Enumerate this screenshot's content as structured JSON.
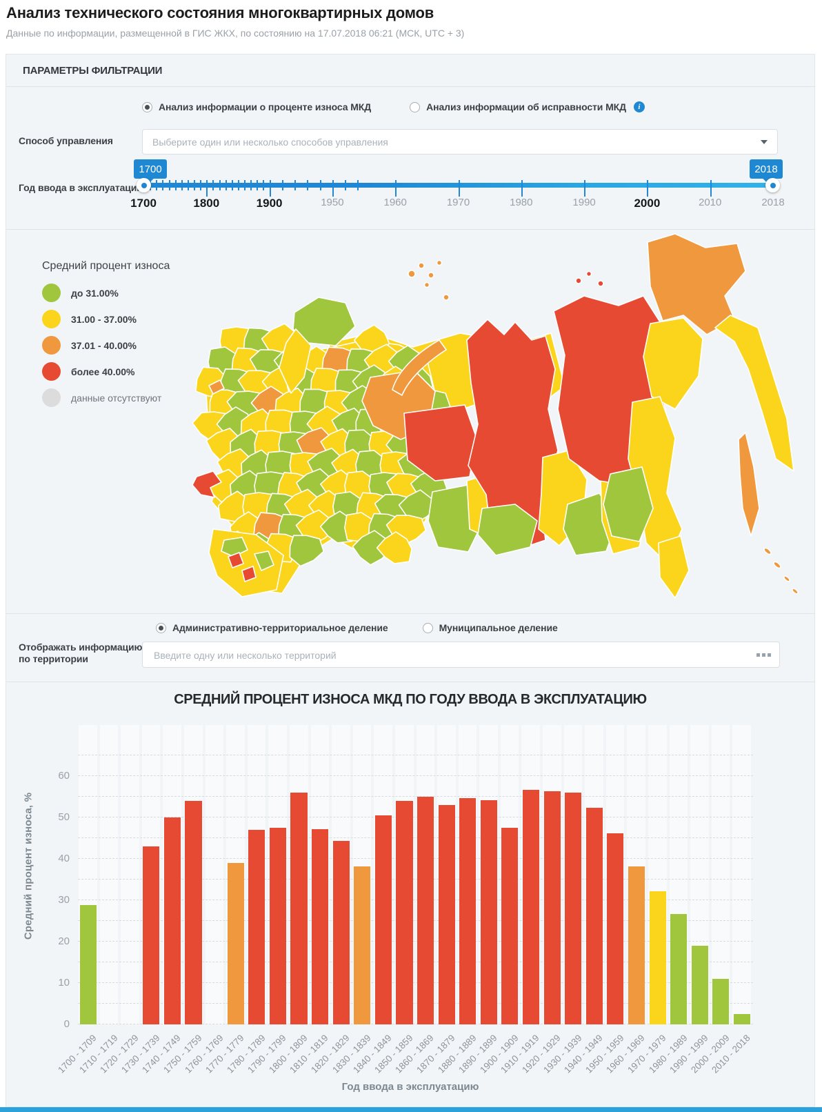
{
  "page": {
    "title": "Анализ технического состояния многоквартирных домов",
    "subtitle": "Данные по информации, размещенной в ГИС ЖКХ, по состоянию на 17.07.2018 06:21 (МСК, UTC + 3)"
  },
  "filter": {
    "header": "ПАРАМЕТРЫ ФИЛЬТРАЦИИ",
    "analysis_radios": [
      {
        "label": "Анализ информации о проценте износа МКД",
        "selected": true
      },
      {
        "label": "Анализ информации об исправности МКД",
        "selected": false,
        "info": true
      }
    ],
    "management": {
      "label": "Способ управления",
      "placeholder": "Выберите один или несколько способов управления"
    },
    "year": {
      "label": "Год ввода в эксплуатацию"
    },
    "slider": {
      "min_tooltip": "1700",
      "max_tooltip": "2018",
      "axis_labels": [
        {
          "t": "1700",
          "pos": 0,
          "bold": true
        },
        {
          "t": "1800",
          "pos": 0.1,
          "bold": true
        },
        {
          "t": "1900",
          "pos": 0.2,
          "bold": true
        },
        {
          "t": "1950",
          "pos": 0.3
        },
        {
          "t": "1960",
          "pos": 0.4
        },
        {
          "t": "1970",
          "pos": 0.5
        },
        {
          "t": "1980",
          "pos": 0.6
        },
        {
          "t": "1990",
          "pos": 0.7
        },
        {
          "t": "2000",
          "pos": 0.8,
          "bold": true
        },
        {
          "t": "2010",
          "pos": 0.9
        },
        {
          "t": "2018",
          "pos": 1
        }
      ]
    }
  },
  "map": {
    "legend": {
      "title": "Средний процент износа",
      "items": [
        {
          "label": "до 31.00%",
          "color": "#9fc63d"
        },
        {
          "label": "31.00 - 37.00%",
          "color": "#fbd51b"
        },
        {
          "label": "37.01 - 40.00%",
          "color": "#f0983d"
        },
        {
          "label": "более 40.00%",
          "color": "#e74a33"
        },
        {
          "label": "данные отсутствуют",
          "color": "#dcdcdc",
          "muted": true
        }
      ]
    },
    "palette": {
      "green": "#9fc63d",
      "yellow": "#fbd51b",
      "orange": "#f0983d",
      "red": "#e74a33",
      "gray": "#dcdcdc"
    },
    "west_cells": [
      "yellow",
      "green",
      "yellow",
      "yellow",
      "green",
      "yellow",
      "green",
      "green",
      "yellow",
      "orange",
      "green",
      "yellow",
      "green",
      "yellow",
      "green",
      "yellow",
      "yellow",
      "green",
      "yellow",
      "green",
      "green",
      "yellow",
      "green",
      "yellow",
      "green",
      "orange",
      "yellow",
      "green",
      "yellow",
      "green",
      "yellow",
      "green",
      "green",
      "yellow",
      "green",
      "yellow",
      "yellow",
      "green",
      "yellow",
      "green",
      "green",
      "yellow",
      "green",
      "yellow",
      "green",
      "yellow",
      "green",
      "orange",
      "yellow",
      "green",
      "yellow",
      "green",
      "yellow",
      "green",
      "green",
      "yellow",
      "green",
      "yellow",
      "green",
      "yellow",
      "green",
      "yellow",
      "green",
      "green",
      "yellow",
      "green",
      "yellow",
      "yellow",
      "green",
      "yellow",
      "green",
      "yellow"
    ]
  },
  "territory": {
    "radios": [
      {
        "label": "Административно-территориальное деление",
        "selected": true
      },
      {
        "label": "Муниципальное деление",
        "selected": false
      }
    ],
    "label_line1": "Отображать информацию",
    "label_line2": "по территории",
    "placeholder": "Введите одну или несколько территорий"
  },
  "chart_data": {
    "type": "bar",
    "title": "СРЕДНИЙ ПРОЦЕНТ ИЗНОСА МКД ПО ГОДУ ВВОДА В ЭКСПЛУАТАЦИЮ",
    "xlabel": "Год ввода в эксплуатацию",
    "ylabel": "Средний процент износа, %",
    "ylim": [
      0,
      60
    ],
    "yticks": [
      0,
      10,
      20,
      30,
      40,
      50,
      60
    ],
    "grid_step": 5,
    "grid_max": 65,
    "grid": true,
    "categories": [
      "1700 - 1709",
      "1710 - 1719",
      "1720 - 1729",
      "1730 - 1739",
      "1740 - 1749",
      "1750 - 1759",
      "1760 - 1769",
      "1770 - 1779",
      "1780 - 1789",
      "1790 - 1799",
      "1800 - 1809",
      "1810 - 1819",
      "1820 - 1829",
      "1830 - 1839",
      "1840 - 1849",
      "1850 - 1859",
      "1860 - 1869",
      "1870 - 1879",
      "1880 - 1889",
      "1890 - 1899",
      "1900 - 1909",
      "1910 - 1919",
      "1920 - 1929",
      "1930 - 1939",
      "1940 - 1949",
      "1950 - 1959",
      "1960 - 1969",
      "1970 - 1979",
      "1980 - 1989",
      "1990 - 1999",
      "2000 - 2009",
      "2010 - 2018"
    ],
    "values": [
      28.8,
      null,
      null,
      43.0,
      50.0,
      54.0,
      null,
      39.0,
      47.0,
      47.5,
      56.0,
      47.2,
      44.3,
      38.2,
      50.5,
      54.0,
      55.0,
      53.0,
      54.6,
      54.2,
      47.5,
      56.6,
      56.3,
      56.0,
      52.3,
      46.2,
      38.2,
      32.2,
      26.6,
      19.0,
      11.0,
      2.5
    ],
    "color_thresholds": {
      "green_below": 31,
      "yellow_max": 37,
      "orange_max": 40
    },
    "series_colors": {
      "green": "#9fc63d",
      "yellow": "#fbd51b",
      "orange": "#f0983d",
      "red": "#e74a33"
    }
  }
}
